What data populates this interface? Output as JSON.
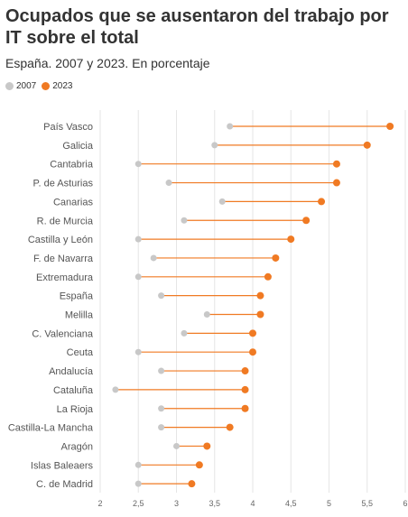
{
  "chart_data": {
    "type": "dumbbell",
    "title": "Ocupados que se ausentaron del trabajo por IT sobre el total",
    "subtitle": "España. 2007 y 2023. En porcentaje",
    "xlim": [
      2,
      6
    ],
    "xticks": [
      "2",
      "2,5",
      "3",
      "3,5",
      "4",
      "4,5",
      "5",
      "5,5",
      "6"
    ],
    "xtick_values": [
      2,
      2.5,
      3,
      3.5,
      4,
      4.5,
      5,
      5.5,
      6
    ],
    "grid": true,
    "legend_position": "top-left",
    "categories": [
      "País Vasco",
      "Galicia",
      "Cantabria",
      "P. de Asturias",
      "Canarias",
      "R. de Murcia",
      "Castilla y León",
      "F. de Navarra",
      "Extremadura",
      "España",
      "Melilla",
      "C. Valenciana",
      "Ceuta",
      "Andalucía",
      "Cataluña",
      "La Rioja",
      "Castilla-La Mancha",
      "Aragón",
      "Islas Baleaers",
      "C. de Madrid"
    ],
    "series": [
      {
        "name": "2007",
        "color": "#c8c8c8",
        "values": [
          3.7,
          3.5,
          2.5,
          2.9,
          3.6,
          3.1,
          2.5,
          2.7,
          2.5,
          2.8,
          3.4,
          3.1,
          2.5,
          2.8,
          2.2,
          2.8,
          2.8,
          3.0,
          2.5,
          2.5
        ]
      },
      {
        "name": "2023",
        "color": "#f07a23",
        "values": [
          5.8,
          5.5,
          5.1,
          5.1,
          4.9,
          4.7,
          4.5,
          4.3,
          4.2,
          4.1,
          4.1,
          4.0,
          4.0,
          3.9,
          3.9,
          3.9,
          3.7,
          3.4,
          3.3,
          3.2
        ]
      }
    ]
  }
}
